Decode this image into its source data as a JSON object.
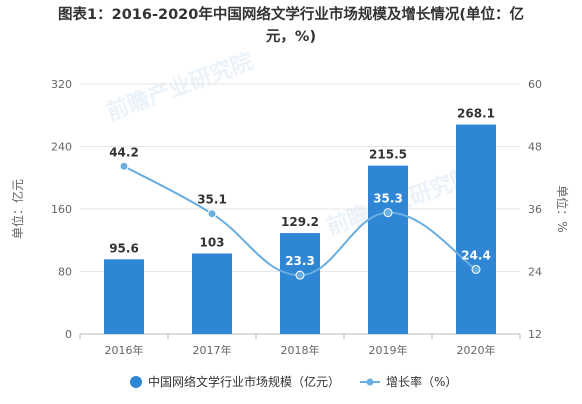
{
  "title": {
    "line1": "图表1：2016-2020年中国网络文学行业市场规模及增长情况(单位：亿",
    "line2": "元，%)"
  },
  "watermark": {
    "text": "前瞻产业研究院"
  },
  "colors": {
    "bar": "#2e86d4",
    "line": "#6aaee0",
    "axis_text": "#666666",
    "grid": "#e6e6e6"
  },
  "chart_data": {
    "type": "bar",
    "categories": [
      "2016年",
      "2017年",
      "2018年",
      "2019年",
      "2020年"
    ],
    "series": [
      {
        "name": "中国网络文学行业市场规模（亿元）",
        "type": "bar",
        "axis": "left",
        "values": [
          95.6,
          103,
          129.2,
          215.5,
          268.1
        ],
        "labels": [
          "95.6",
          "103",
          "129.2",
          "215.5",
          "268.1"
        ]
      },
      {
        "name": "增长率（%）",
        "type": "line",
        "axis": "right",
        "values": [
          44.2,
          35.1,
          23.3,
          35.3,
          24.4
        ],
        "labels": [
          "44.2",
          "35.1",
          "23.3",
          "35.3",
          "24.4"
        ]
      }
    ],
    "ylabel": "单位：亿元",
    "ylabel_right": "单位：%",
    "ylim": [
      0,
      320
    ],
    "yticks": [
      "0",
      "80",
      "160",
      "240",
      "320"
    ],
    "ylim_right": [
      12,
      60
    ],
    "yticks_right": [
      "12",
      "24",
      "36",
      "48",
      "60"
    ],
    "grid": true,
    "legend_position": "bottom-center"
  }
}
